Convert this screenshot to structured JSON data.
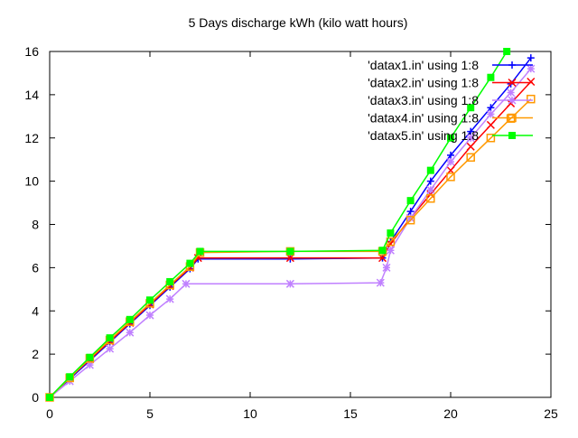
{
  "chart_data": {
    "type": "line",
    "title": "5 Days discharge kWh (kilo watt hours)",
    "xlabel": "",
    "ylabel": "",
    "xlim": [
      0,
      25
    ],
    "ylim": [
      0,
      16
    ],
    "x_ticks": [
      0,
      5,
      10,
      15,
      20,
      25
    ],
    "y_ticks": [
      0,
      2,
      4,
      6,
      8,
      10,
      12,
      14,
      16
    ],
    "grid": false,
    "legend_position": "top-right",
    "series": [
      {
        "name": "'datax1.in' using 1:8",
        "color": "#0000ff",
        "marker": "plus",
        "points": [
          [
            0,
            0
          ],
          [
            1,
            0.85
          ],
          [
            2,
            1.7
          ],
          [
            3,
            2.55
          ],
          [
            4,
            3.4
          ],
          [
            5,
            4.25
          ],
          [
            6,
            5.1
          ],
          [
            7,
            5.95
          ],
          [
            7.4,
            6.4
          ],
          [
            12,
            6.4
          ],
          [
            16.6,
            6.45
          ],
          [
            17,
            7.2
          ],
          [
            18,
            8.6
          ],
          [
            19,
            10.0
          ],
          [
            20,
            11.2
          ],
          [
            21,
            12.3
          ],
          [
            22,
            13.4
          ],
          [
            23,
            14.5
          ],
          [
            24,
            15.7
          ]
        ]
      },
      {
        "name": "'datax2.in' using 1:8",
        "color": "#ff0000",
        "marker": "cross",
        "points": [
          [
            0,
            0
          ],
          [
            1,
            0.9
          ],
          [
            2,
            1.75
          ],
          [
            3,
            2.6
          ],
          [
            4,
            3.45
          ],
          [
            5,
            4.3
          ],
          [
            6,
            5.15
          ],
          [
            7,
            6.0
          ],
          [
            7.4,
            6.45
          ],
          [
            12,
            6.45
          ],
          [
            16.6,
            6.45
          ],
          [
            17,
            7.1
          ],
          [
            18,
            8.3
          ],
          [
            19,
            9.4
          ],
          [
            20,
            10.5
          ],
          [
            21,
            11.6
          ],
          [
            22,
            12.6
          ],
          [
            23,
            13.6
          ],
          [
            24,
            14.6
          ]
        ]
      },
      {
        "name": "'datax3.in' using 1:8",
        "color": "#c080ff",
        "marker": "star",
        "points": [
          [
            0,
            0
          ],
          [
            1,
            0.75
          ],
          [
            2,
            1.5
          ],
          [
            3,
            2.25
          ],
          [
            4,
            3.0
          ],
          [
            5,
            3.8
          ],
          [
            6,
            4.55
          ],
          [
            6.8,
            5.25
          ],
          [
            12,
            5.25
          ],
          [
            16.5,
            5.3
          ],
          [
            16.8,
            6.0
          ],
          [
            17,
            6.8
          ],
          [
            18,
            8.3
          ],
          [
            19,
            9.6
          ],
          [
            20,
            10.9
          ],
          [
            21,
            12.0
          ],
          [
            22,
            13.1
          ],
          [
            23,
            14.1
          ],
          [
            24,
            15.2
          ]
        ]
      },
      {
        "name": "'datax4.in' using 1:8",
        "color": "#ff9900",
        "marker": "box",
        "points": [
          [
            0,
            0
          ],
          [
            1,
            0.9
          ],
          [
            2,
            1.8
          ],
          [
            3,
            2.65
          ],
          [
            4,
            3.5
          ],
          [
            5,
            4.35
          ],
          [
            6,
            5.2
          ],
          [
            7,
            6.05
          ],
          [
            7.5,
            6.7
          ],
          [
            12,
            6.75
          ],
          [
            16.6,
            6.75
          ],
          [
            17,
            7.2
          ],
          [
            18,
            8.2
          ],
          [
            19,
            9.2
          ],
          [
            20,
            10.2
          ],
          [
            21,
            11.1
          ],
          [
            22,
            12.0
          ],
          [
            23,
            12.9
          ],
          [
            24,
            13.8
          ]
        ]
      },
      {
        "name": "'datax5.in' using 1:8",
        "color": "#00ff00",
        "marker": "filled-box",
        "points": [
          [
            0,
            0
          ],
          [
            1,
            0.95
          ],
          [
            2,
            1.85
          ],
          [
            3,
            2.75
          ],
          [
            4,
            3.6
          ],
          [
            5,
            4.5
          ],
          [
            6,
            5.35
          ],
          [
            7,
            6.2
          ],
          [
            7.5,
            6.75
          ],
          [
            12,
            6.75
          ],
          [
            16.6,
            6.8
          ],
          [
            17,
            7.6
          ],
          [
            18,
            9.1
          ],
          [
            19,
            10.5
          ],
          [
            20,
            12.0
          ],
          [
            21,
            13.4
          ],
          [
            22,
            14.8
          ],
          [
            22.8,
            16.0
          ]
        ]
      }
    ]
  }
}
